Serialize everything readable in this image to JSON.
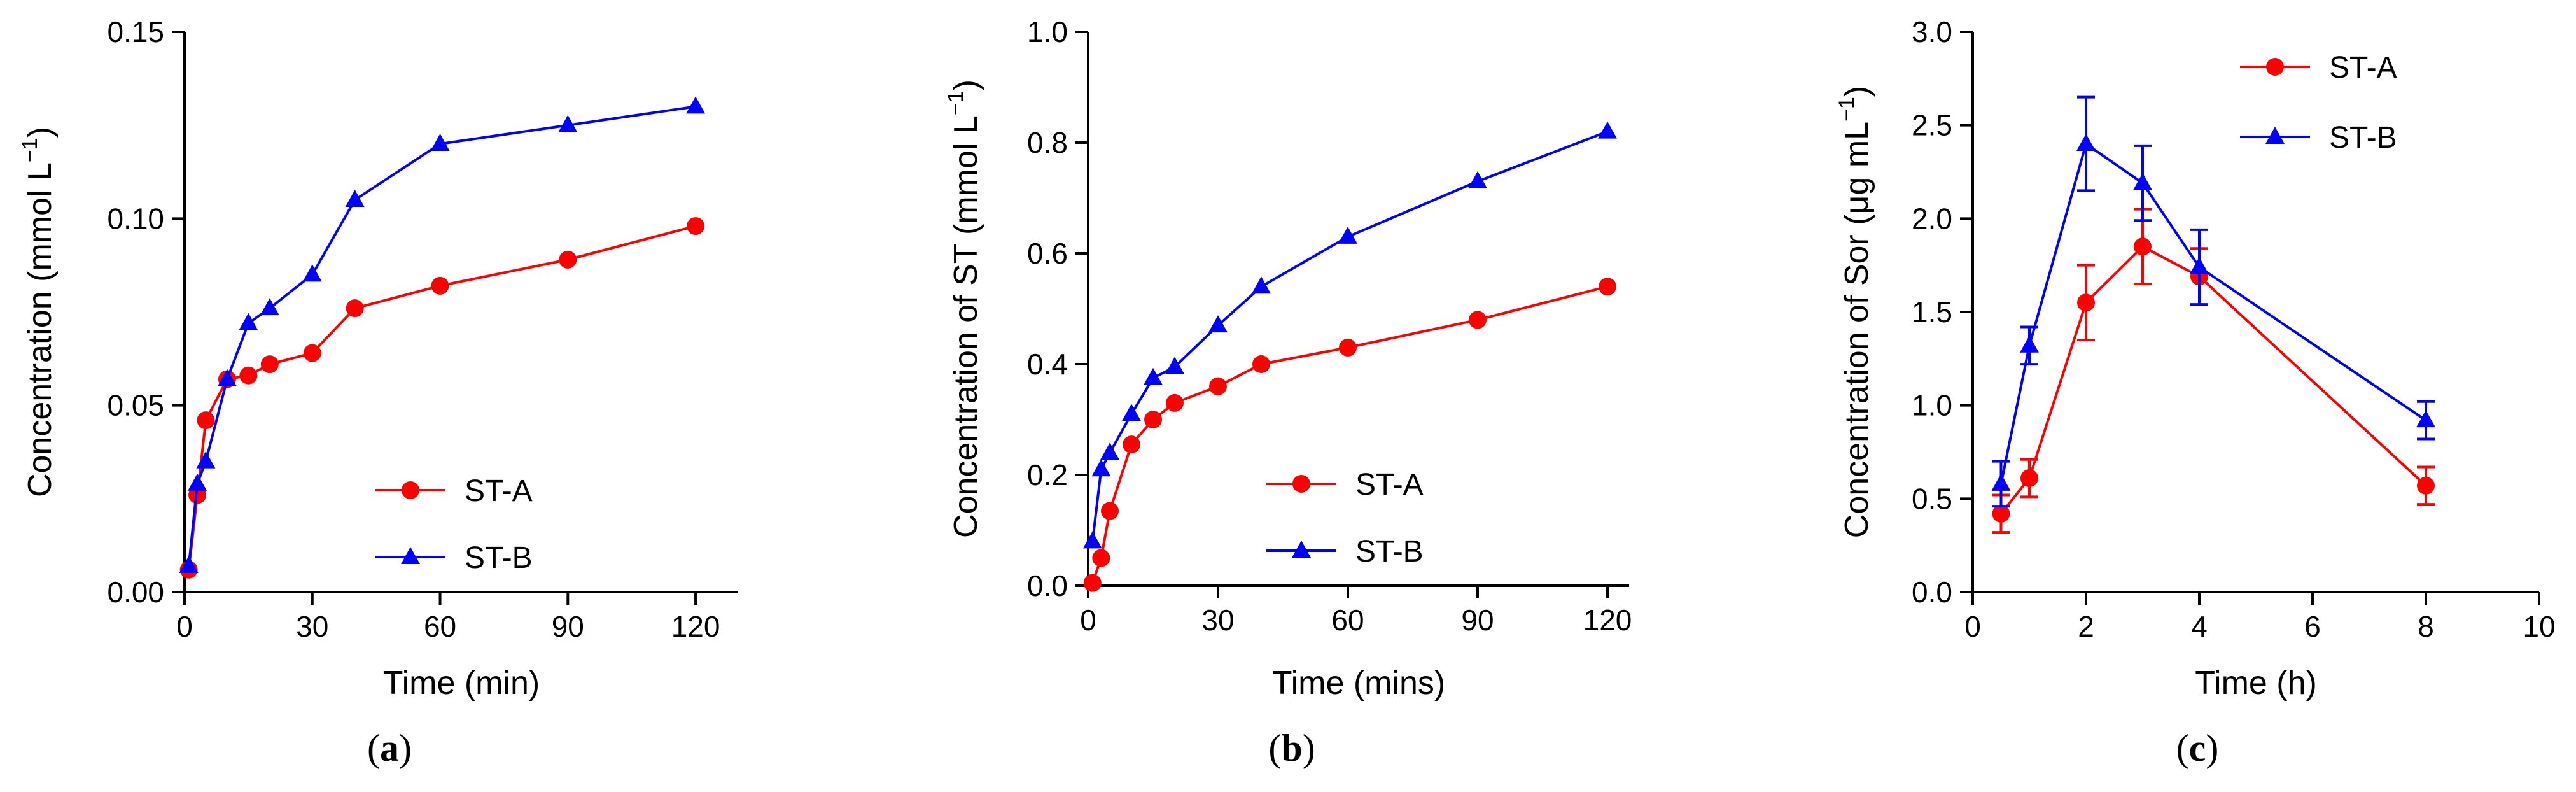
{
  "chart_data": [
    {
      "type": "line",
      "panel_label": "a",
      "title": "",
      "xlabel": "Time (min)",
      "ylabel": "Concentration (mmol L",
      "ylabel_superscript": "−1",
      "ylabel_suffix": ")",
      "xlim": [
        0,
        130
      ],
      "ylim": [
        0,
        0.15
      ],
      "xticks": [
        0,
        30,
        60,
        90,
        120
      ],
      "xtick_labels": [
        "0",
        "30",
        "60",
        "90",
        "120"
      ],
      "yticks": [
        0,
        0.05,
        0.1,
        0.15
      ],
      "ytick_labels": [
        "0.00",
        "0.05",
        "0.10",
        "0.15"
      ],
      "legend_position": "lower-right",
      "series": [
        {
          "name": "ST-A",
          "color": "#ff0000",
          "marker": "circle",
          "x": [
            1,
            3,
            5,
            10,
            15,
            20,
            30,
            40,
            60,
            90,
            120
          ],
          "y": [
            0.006,
            0.026,
            0.046,
            0.057,
            0.058,
            0.061,
            0.064,
            0.076,
            0.082,
            0.089,
            0.098
          ]
        },
        {
          "name": "ST-B",
          "color": "#0000ff",
          "marker": "triangle",
          "x": [
            1,
            3,
            5,
            10,
            15,
            20,
            30,
            40,
            60,
            90,
            120
          ],
          "y": [
            0.007,
            0.029,
            0.035,
            0.057,
            0.072,
            0.076,
            0.085,
            0.105,
            0.12,
            0.125,
            0.13
          ]
        }
      ]
    },
    {
      "type": "line",
      "panel_label": "b",
      "title": "",
      "xlabel": "Time (mins)",
      "ylabel": "Concentration of ST (mmol L",
      "ylabel_superscript": "−1",
      "ylabel_suffix": ")",
      "xlim": [
        0,
        125
      ],
      "ylim": [
        0,
        1.0
      ],
      "xticks": [
        0,
        30,
        60,
        90,
        120
      ],
      "xtick_labels": [
        "0",
        "30",
        "60",
        "90",
        "120"
      ],
      "yticks": [
        0,
        0.2,
        0.4,
        0.6,
        0.8,
        1.0
      ],
      "ytick_labels": [
        "0.0",
        "0.2",
        "0.4",
        "0.6",
        "0.8",
        "1.0"
      ],
      "legend_position": "lower-right",
      "series": [
        {
          "name": "ST-A",
          "color": "#ff0000",
          "marker": "circle",
          "x": [
            1,
            3,
            5,
            10,
            15,
            20,
            30,
            40,
            60,
            90,
            120
          ],
          "y": [
            0.005,
            0.05,
            0.135,
            0.255,
            0.3,
            0.33,
            0.36,
            0.4,
            0.43,
            0.48,
            0.54
          ]
        },
        {
          "name": "ST-B",
          "color": "#0000ff",
          "marker": "triangle",
          "x": [
            1,
            3,
            5,
            10,
            15,
            20,
            30,
            40,
            60,
            90,
            120
          ],
          "y": [
            0.08,
            0.21,
            0.24,
            0.31,
            0.375,
            0.395,
            0.47,
            0.54,
            0.63,
            0.73,
            0.82
          ]
        }
      ]
    },
    {
      "type": "line",
      "panel_label": "c",
      "title": "",
      "xlabel": "Time (h)",
      "ylabel": "Concentration of Sor  (μg mL",
      "ylabel_superscript": "−1",
      "ylabel_suffix": ")",
      "xlim": [
        0,
        10
      ],
      "ylim": [
        0,
        3.0
      ],
      "xticks": [
        0,
        2,
        4,
        6,
        8,
        10
      ],
      "xtick_labels": [
        "0",
        "2",
        "4",
        "6",
        "8",
        "10"
      ],
      "yticks": [
        0,
        0.5,
        1.0,
        1.5,
        2.0,
        2.5,
        3.0
      ],
      "ytick_labels": [
        "0.0",
        "0.5",
        "1.0",
        "1.5",
        "2.0",
        "2.5",
        "3.0"
      ],
      "legend_position": "top-center",
      "series": [
        {
          "name": "ST-A",
          "color": "#ff0000",
          "marker": "circle",
          "x": [
            0.5,
            1,
            2,
            3,
            4,
            8
          ],
          "y": [
            0.42,
            0.61,
            1.55,
            1.85,
            1.69,
            0.57
          ],
          "error": [
            0.1,
            0.1,
            0.2,
            0.2,
            0.15,
            0.1
          ]
        },
        {
          "name": "ST-B",
          "color": "#0000ff",
          "marker": "triangle",
          "x": [
            0.5,
            1,
            2,
            3,
            4,
            8
          ],
          "y": [
            0.58,
            1.32,
            2.4,
            2.19,
            1.74,
            0.92
          ],
          "error": [
            0.12,
            0.1,
            0.25,
            0.2,
            0.2,
            0.1
          ]
        }
      ]
    }
  ]
}
